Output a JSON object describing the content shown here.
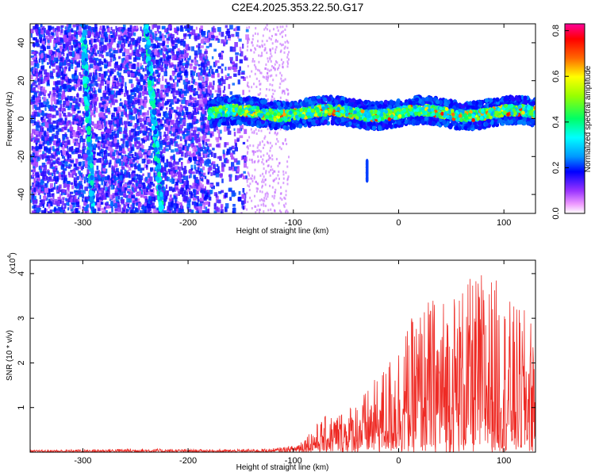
{
  "title": "C2E4.2025.353.22.50.G17",
  "colors": {
    "snr_line": "#ee2a24",
    "spec_low": "#9a55ee",
    "spec_band": "#4455ee",
    "axis": "#000000"
  },
  "chart_data": [
    {
      "type": "heatmap",
      "xlabel": "Height of straight line (km)",
      "ylabel": "Frequency (Hz)",
      "xlim": [
        -350,
        130
      ],
      "ylim": [
        -50,
        50
      ],
      "x_ticks": [
        -300,
        -200,
        -100,
        0,
        100
      ],
      "x_tick_labels": [
        "-300",
        "-200",
        "-100",
        "0",
        "100"
      ],
      "y_ticks": [
        -40,
        -20,
        0,
        20,
        40
      ],
      "y_tick_labels": [
        "-40",
        "-20",
        "0",
        "20",
        "40"
      ],
      "colorbar": {
        "label": "Normalized spectral amplitude",
        "range": [
          0.0,
          0.83
        ],
        "ticks": [
          "0.0",
          "0.2",
          "0.4",
          "0.6",
          "0.8"
        ],
        "tick_values": [
          0.0,
          0.2,
          0.4,
          0.6,
          0.8
        ]
      },
      "features": {
        "signal_band": {
          "x_range": [
            -180,
            130
          ],
          "center_freq_hz": 3,
          "peak_amplitude": 0.75
        },
        "diagonal_tracks": [
          {
            "from": [
              -300,
              50
            ],
            "to": [
              -290,
              -50
            ]
          },
          {
            "from": [
              -240,
              50
            ],
            "to": [
              -225,
              -50
            ]
          }
        ],
        "spike": {
          "x": -30,
          "freq_range": [
            -33,
            -22
          ]
        }
      }
    },
    {
      "type": "line",
      "xlabel": "Height of straight line (km)",
      "ylabel": "SNR (10 * v/v)",
      "y_scale_label": "(x10",
      "y_scale_exponent": "4",
      "y_multiplier": 10000,
      "xlim": [
        -350,
        130
      ],
      "ylim": [
        0,
        4.3
      ],
      "x_ticks": [
        -300,
        -200,
        -100,
        0,
        100
      ],
      "x_tick_labels": [
        "-300",
        "-200",
        "-100",
        "0",
        "100"
      ],
      "y_ticks": [
        1,
        2,
        3,
        4
      ],
      "y_tick_labels": [
        "1",
        "2",
        "3",
        "4"
      ],
      "series": [
        {
          "x": [
            -350,
            -300,
            -250,
            -200,
            -150,
            -120,
            -100,
            -90,
            -80,
            -70,
            -60,
            -50,
            -40,
            -30,
            -20,
            -10,
            0,
            10,
            20,
            30,
            40,
            50,
            60,
            70,
            80,
            90,
            100,
            110,
            120,
            130
          ],
          "y": [
            0.04,
            0.06,
            0.08,
            0.06,
            0.06,
            0.08,
            0.15,
            0.35,
            0.6,
            0.8,
            0.9,
            1.0,
            1.2,
            1.4,
            1.7,
            2.1,
            2.6,
            2.9,
            3.3,
            3.5,
            3.5,
            3.7,
            3.8,
            3.9,
            4.1,
            4.0,
            3.6,
            3.3,
            3.2,
            3.0
          ]
        }
      ]
    }
  ]
}
